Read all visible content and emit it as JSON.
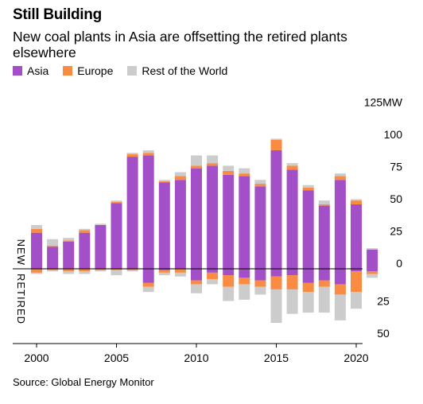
{
  "title": "Still Building",
  "subtitle": "New coal plants in Asia are offsetting the retired plants elsewhere",
  "source": "Source: Global Energy Monitor",
  "colors": {
    "asia": "#a350c8",
    "europe": "#f98b42",
    "rest": "#cccccc"
  },
  "chart_data": {
    "type": "bar",
    "stacked": true,
    "diverging": true,
    "unit_label": "125MW",
    "side_labels": {
      "up": "NEW",
      "down": "RETIRED"
    },
    "years": [
      2000,
      2001,
      2002,
      2003,
      2004,
      2005,
      2006,
      2007,
      2008,
      2009,
      2010,
      2011,
      2012,
      2013,
      2014,
      2015,
      2016,
      2017,
      2018,
      2019,
      2020,
      2021
    ],
    "x_ticks": [
      "2000",
      "2005",
      "2010",
      "2015",
      "2020"
    ],
    "y_ticks_up": [
      "125MW",
      "100",
      "75",
      "50",
      "25",
      "0"
    ],
    "y_ticks_down": [
      "25",
      "50"
    ],
    "y_range": [
      -50,
      125
    ],
    "legend": [
      "Asia",
      "Europe",
      "Rest of the World"
    ],
    "new": {
      "Asia": [
        28,
        17,
        21,
        28,
        34,
        51,
        87,
        88,
        67,
        69,
        78,
        80,
        73,
        72,
        64,
        92,
        77,
        61,
        49,
        69,
        50,
        15
      ],
      "Europe": [
        3,
        1,
        1,
        2,
        0,
        1,
        2,
        2,
        1,
        3,
        2,
        2,
        3,
        2,
        2,
        8,
        3,
        2,
        1,
        3,
        3,
        0
      ],
      "Rest": [
        3,
        5,
        2,
        1,
        1,
        1,
        1,
        2,
        1,
        3,
        8,
        6,
        4,
        4,
        3,
        1,
        2,
        2,
        3,
        2,
        1,
        1
      ]
    },
    "retired": {
      "Asia": [
        0,
        0,
        0,
        0,
        0,
        0,
        0,
        11,
        1,
        0,
        9,
        3,
        5,
        7,
        9,
        6,
        5,
        11,
        9,
        12,
        2,
        2
      ],
      "Europe": [
        3,
        1,
        2,
        2,
        1,
        1,
        1,
        3,
        2,
        3,
        3,
        5,
        9,
        5,
        5,
        10,
        11,
        7,
        5,
        8,
        16,
        2
      ],
      "Rest": [
        1,
        1,
        2,
        2,
        1,
        4,
        1,
        4,
        2,
        3,
        7,
        4,
        11,
        12,
        6,
        26,
        19,
        16,
        20,
        20,
        13,
        3
      ]
    }
  }
}
